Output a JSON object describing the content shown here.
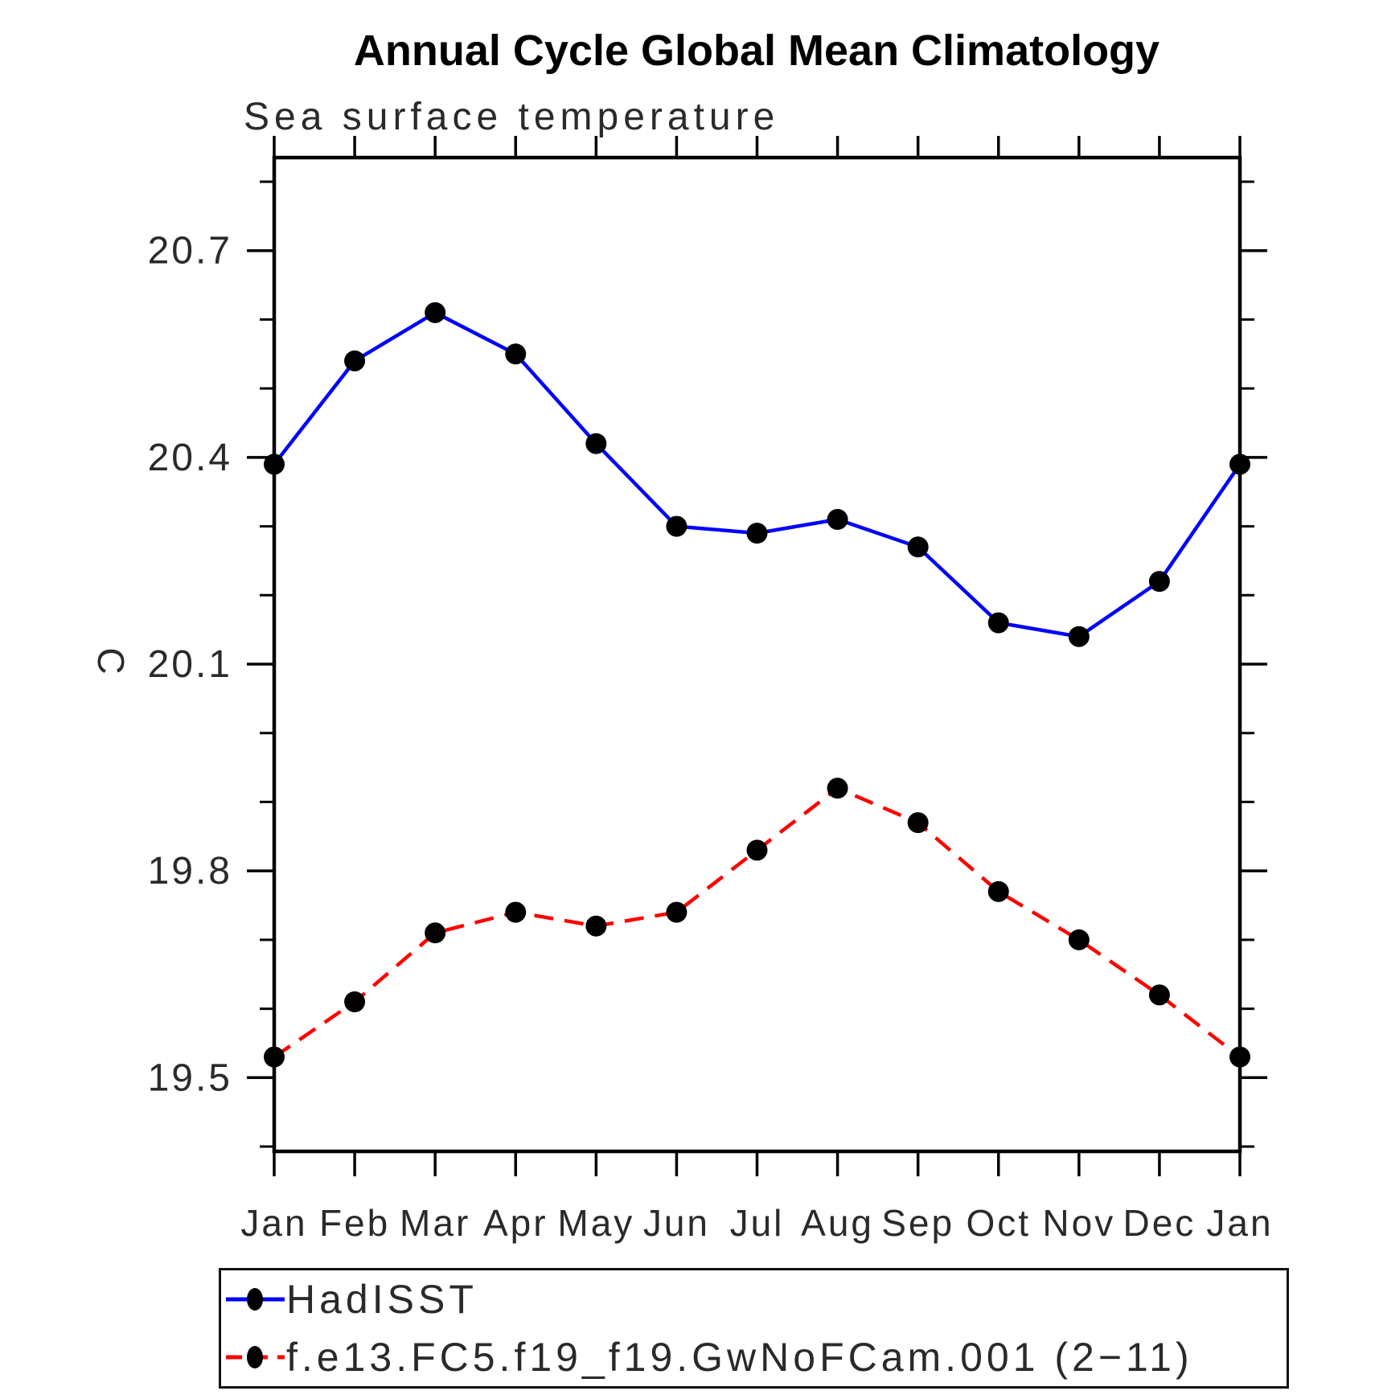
{
  "page": {
    "background": "#ffffff",
    "text_color": "#2a2a2a"
  },
  "header": {
    "title": "Annual Cycle Global Mean Climatology",
    "subtitle": "Sea surface temperature"
  },
  "chart_data": {
    "type": "line",
    "title": "Annual Cycle Global Mean Climatology",
    "subtitle": "Sea surface temperature",
    "xlabel": "",
    "ylabel": "C",
    "categories": [
      "Jan",
      "Feb",
      "Mar",
      "Apr",
      "May",
      "Jun",
      "Jul",
      "Aug",
      "Sep",
      "Oct",
      "Nov",
      "Dec",
      "Jan"
    ],
    "series": [
      {
        "name": "HadISST",
        "color": "#0000ff",
        "line_style": "solid",
        "marker": "filled-circle",
        "marker_color": "#000000",
        "values": [
          20.39,
          20.54,
          20.61,
          20.55,
          20.42,
          20.3,
          20.29,
          20.31,
          20.27,
          20.16,
          20.14,
          20.22,
          20.39
        ]
      },
      {
        "name": "f.e13.FC5.f19_f19.GwNoFCam.001 (2−11)",
        "color": "#ff0000",
        "line_style": "dashed",
        "marker": "filled-circle",
        "marker_color": "#000000",
        "values": [
          19.53,
          19.61,
          19.71,
          19.74,
          19.72,
          19.74,
          19.83,
          19.92,
          19.87,
          19.77,
          19.7,
          19.62,
          19.53
        ]
      }
    ],
    "y_tick_labels": [
      "19.5",
      "19.8",
      "20.1",
      "20.4",
      "20.7"
    ],
    "y_major_ticks": [
      19.5,
      19.8,
      20.1,
      20.4,
      20.7
    ],
    "y_minor_step": 0.1,
    "ylim": [
      19.393,
      20.835
    ],
    "grid": false,
    "legend_position": "bottom-left"
  }
}
